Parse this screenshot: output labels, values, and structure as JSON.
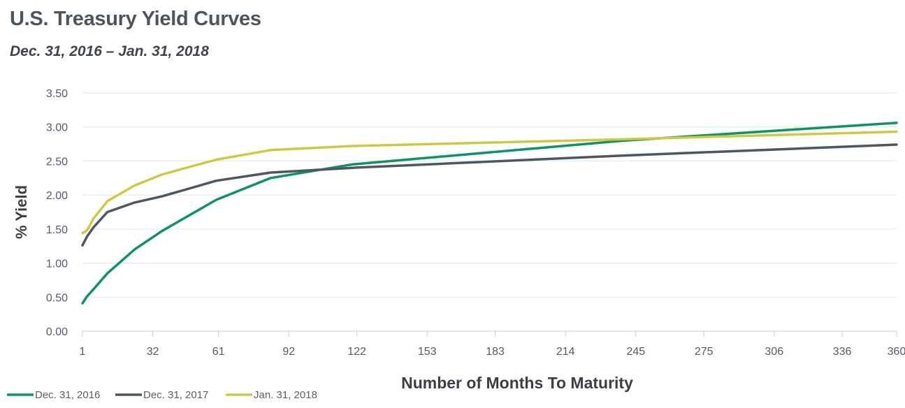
{
  "chart_data": {
    "type": "line",
    "title": "U.S. Treasury Yield Curves",
    "subtitle": "Dec. 31, 2016 – Jan. 31, 2018",
    "xlabel": "Number of Months To Maturity",
    "ylabel": "% Yield",
    "xlim": [
      1,
      360
    ],
    "ylim": [
      0,
      3.5
    ],
    "x_ticks": [
      1,
      32,
      61,
      92,
      122,
      153,
      183,
      214,
      245,
      275,
      306,
      336,
      360
    ],
    "y_ticks": [
      "0.00",
      "0.50",
      "1.00",
      "1.50",
      "2.00",
      "2.50",
      "3.00",
      "3.50"
    ],
    "grid": "horizontal",
    "legend_position": "bottom-left",
    "x": [
      1,
      3,
      6,
      12,
      24,
      36,
      60,
      84,
      120,
      240,
      360
    ],
    "series": [
      {
        "name": "Dec. 31, 2016",
        "color": "#0a9561",
        "values": [
          0.41,
          0.51,
          0.62,
          0.85,
          1.2,
          1.47,
          1.93,
          2.25,
          2.45,
          2.8,
          3.06
        ]
      },
      {
        "name": "Dec. 31, 2017",
        "color": "#4c5860",
        "values": [
          1.26,
          1.39,
          1.53,
          1.75,
          1.89,
          1.98,
          2.21,
          2.33,
          2.4,
          2.58,
          2.74
        ]
      },
      {
        "name": "Jan. 31, 2018",
        "color": "#cfc940",
        "values": [
          1.44,
          1.48,
          1.66,
          1.91,
          2.14,
          2.3,
          2.52,
          2.66,
          2.72,
          2.82,
          2.93
        ]
      }
    ]
  }
}
